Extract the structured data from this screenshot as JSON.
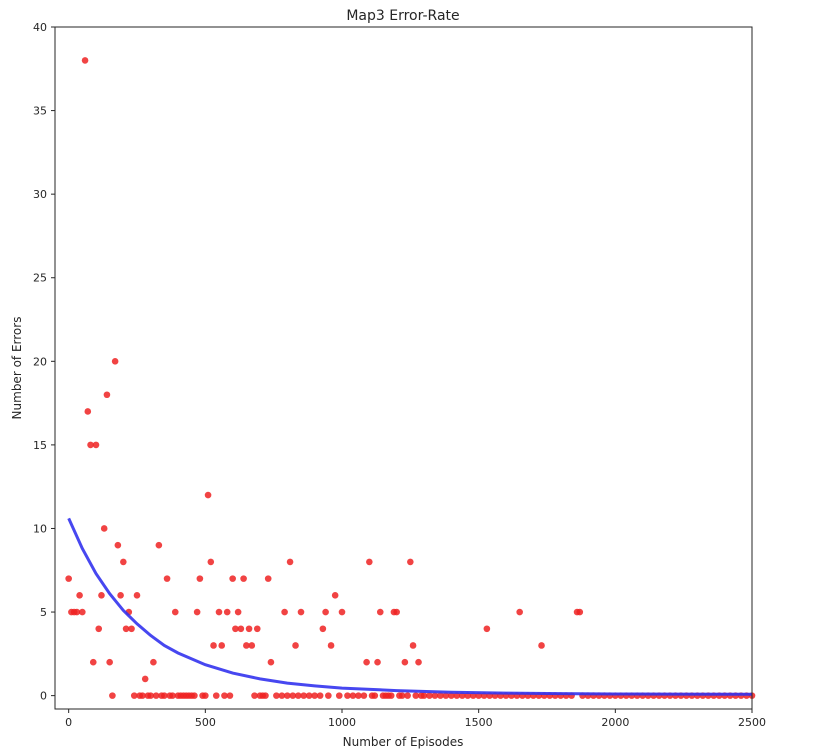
{
  "chart_data": {
    "type": "scatter",
    "title": "Map3 Error-Rate",
    "xlabel": "Number of Episodes",
    "ylabel": "Number of Errors",
    "xlim": [
      -50,
      2500
    ],
    "ylim": [
      -0.8,
      40
    ],
    "xticks": [
      0,
      500,
      1000,
      1500,
      2000,
      2500
    ],
    "yticks": [
      0,
      5,
      10,
      15,
      20,
      25,
      30,
      35,
      40
    ],
    "grid": false,
    "legend": "none",
    "colors": {
      "points": "#ee2222",
      "fit": "#3333ee",
      "axis": "#262626"
    },
    "points": [
      [
        0,
        7
      ],
      [
        10,
        5
      ],
      [
        20,
        5
      ],
      [
        30,
        5
      ],
      [
        40,
        6
      ],
      [
        50,
        5
      ],
      [
        60,
        38
      ],
      [
        70,
        17
      ],
      [
        80,
        15
      ],
      [
        90,
        2
      ],
      [
        100,
        15
      ],
      [
        110,
        4
      ],
      [
        120,
        6
      ],
      [
        130,
        10
      ],
      [
        140,
        18
      ],
      [
        150,
        2
      ],
      [
        160,
        0
      ],
      [
        170,
        20
      ],
      [
        180,
        9
      ],
      [
        190,
        6
      ],
      [
        200,
        8
      ],
      [
        210,
        4
      ],
      [
        220,
        5
      ],
      [
        230,
        4
      ],
      [
        240,
        0
      ],
      [
        250,
        6
      ],
      [
        260,
        0
      ],
      [
        270,
        0
      ],
      [
        280,
        1
      ],
      [
        290,
        0
      ],
      [
        300,
        0
      ],
      [
        310,
        2
      ],
      [
        320,
        0
      ],
      [
        330,
        9
      ],
      [
        340,
        0
      ],
      [
        350,
        0
      ],
      [
        360,
        7
      ],
      [
        370,
        0
      ],
      [
        380,
        0
      ],
      [
        390,
        5
      ],
      [
        400,
        0
      ],
      [
        410,
        0
      ],
      [
        420,
        0
      ],
      [
        430,
        0
      ],
      [
        440,
        0
      ],
      [
        450,
        0
      ],
      [
        460,
        0
      ],
      [
        470,
        5
      ],
      [
        480,
        7
      ],
      [
        490,
        0
      ],
      [
        500,
        0
      ],
      [
        510,
        12
      ],
      [
        520,
        8
      ],
      [
        530,
        3
      ],
      [
        540,
        0
      ],
      [
        550,
        5
      ],
      [
        560,
        3
      ],
      [
        570,
        0
      ],
      [
        580,
        5
      ],
      [
        590,
        0
      ],
      [
        600,
        7
      ],
      [
        610,
        4
      ],
      [
        620,
        5
      ],
      [
        630,
        4
      ],
      [
        640,
        7
      ],
      [
        650,
        3
      ],
      [
        660,
        4
      ],
      [
        670,
        3
      ],
      [
        680,
        0
      ],
      [
        690,
        4
      ],
      [
        700,
        0
      ],
      [
        710,
        0
      ],
      [
        720,
        0
      ],
      [
        730,
        7
      ],
      [
        740,
        2
      ],
      [
        760,
        0
      ],
      [
        780,
        0
      ],
      [
        790,
        5
      ],
      [
        800,
        0
      ],
      [
        810,
        8
      ],
      [
        820,
        0
      ],
      [
        830,
        3
      ],
      [
        840,
        0
      ],
      [
        850,
        5
      ],
      [
        860,
        0
      ],
      [
        880,
        0
      ],
      [
        900,
        0
      ],
      [
        920,
        0
      ],
      [
        930,
        4
      ],
      [
        940,
        5
      ],
      [
        950,
        0
      ],
      [
        960,
        3
      ],
      [
        975,
        6
      ],
      [
        990,
        0
      ],
      [
        1000,
        5
      ],
      [
        1020,
        0
      ],
      [
        1040,
        0
      ],
      [
        1060,
        0
      ],
      [
        1080,
        0
      ],
      [
        1090,
        2
      ],
      [
        1100,
        8
      ],
      [
        1110,
        0
      ],
      [
        1120,
        0
      ],
      [
        1130,
        2
      ],
      [
        1140,
        5
      ],
      [
        1150,
        0
      ],
      [
        1160,
        0
      ],
      [
        1170,
        0
      ],
      [
        1180,
        0
      ],
      [
        1190,
        5
      ],
      [
        1200,
        5
      ],
      [
        1210,
        0
      ],
      [
        1220,
        0
      ],
      [
        1230,
        2
      ],
      [
        1240,
        0
      ],
      [
        1250,
        8
      ],
      [
        1260,
        3
      ],
      [
        1270,
        0
      ],
      [
        1280,
        2
      ],
      [
        1290,
        0
      ],
      [
        1300,
        0
      ],
      [
        1320,
        0
      ],
      [
        1340,
        0
      ],
      [
        1360,
        0
      ],
      [
        1380,
        0
      ],
      [
        1400,
        0
      ],
      [
        1420,
        0
      ],
      [
        1440,
        0
      ],
      [
        1460,
        0
      ],
      [
        1480,
        0
      ],
      [
        1500,
        0
      ],
      [
        1520,
        0
      ],
      [
        1530,
        4
      ],
      [
        1540,
        0
      ],
      [
        1560,
        0
      ],
      [
        1580,
        0
      ],
      [
        1600,
        0
      ],
      [
        1620,
        0
      ],
      [
        1640,
        0
      ],
      [
        1650,
        5
      ],
      [
        1660,
        0
      ],
      [
        1680,
        0
      ],
      [
        1700,
        0
      ],
      [
        1720,
        0
      ],
      [
        1730,
        3
      ],
      [
        1740,
        0
      ],
      [
        1760,
        0
      ],
      [
        1780,
        0
      ],
      [
        1800,
        0
      ],
      [
        1820,
        0
      ],
      [
        1840,
        0
      ],
      [
        1860,
        5
      ],
      [
        1870,
        5
      ],
      [
        1880,
        0
      ],
      [
        1900,
        0
      ],
      [
        1920,
        0
      ],
      [
        1940,
        0
      ],
      [
        1960,
        0
      ],
      [
        1980,
        0
      ],
      [
        2000,
        0
      ],
      [
        2020,
        0
      ],
      [
        2040,
        0
      ],
      [
        2060,
        0
      ],
      [
        2080,
        0
      ],
      [
        2100,
        0
      ],
      [
        2120,
        0
      ],
      [
        2140,
        0
      ],
      [
        2160,
        0
      ],
      [
        2180,
        0
      ],
      [
        2200,
        0
      ],
      [
        2220,
        0
      ],
      [
        2240,
        0
      ],
      [
        2260,
        0
      ],
      [
        2280,
        0
      ],
      [
        2300,
        0
      ],
      [
        2320,
        0
      ],
      [
        2340,
        0
      ],
      [
        2360,
        0
      ],
      [
        2380,
        0
      ],
      [
        2400,
        0
      ],
      [
        2420,
        0
      ],
      [
        2440,
        0
      ],
      [
        2460,
        0
      ],
      [
        2480,
        0
      ],
      [
        2500,
        0
      ]
    ],
    "fit_curve": [
      [
        0,
        10.6
      ],
      [
        50,
        8.8
      ],
      [
        100,
        7.3
      ],
      [
        150,
        6.1
      ],
      [
        200,
        5.1
      ],
      [
        250,
        4.3
      ],
      [
        300,
        3.6
      ],
      [
        350,
        3.0
      ],
      [
        400,
        2.55
      ],
      [
        500,
        1.85
      ],
      [
        600,
        1.35
      ],
      [
        700,
        1.0
      ],
      [
        800,
        0.75
      ],
      [
        900,
        0.58
      ],
      [
        1000,
        0.45
      ],
      [
        1200,
        0.3
      ],
      [
        1400,
        0.2
      ],
      [
        1600,
        0.15
      ],
      [
        1800,
        0.12
      ],
      [
        2000,
        0.1
      ],
      [
        2200,
        0.09
      ],
      [
        2500,
        0.08
      ]
    ]
  }
}
